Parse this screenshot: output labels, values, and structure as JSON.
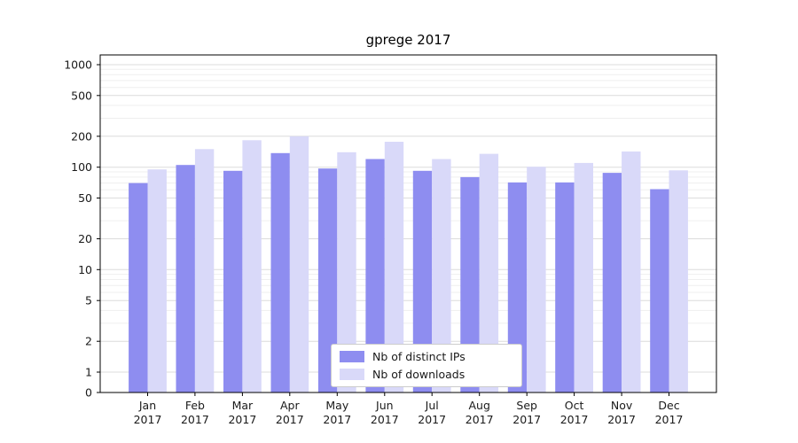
{
  "chart_data": {
    "type": "bar",
    "title": "gprege 2017",
    "scale": "symlog",
    "grid": true,
    "legend_position": "lower center",
    "months": [
      "Jan",
      "Feb",
      "Mar",
      "Apr",
      "May",
      "Jun",
      "Jul",
      "Aug",
      "Sep",
      "Oct",
      "Nov",
      "Dec"
    ],
    "year_label": "2017",
    "categories": [
      "Jan 2017",
      "Feb 2017",
      "Mar 2017",
      "Apr 2017",
      "May 2017",
      "Jun 2017",
      "Jul 2017",
      "Aug 2017",
      "Sep 2017",
      "Oct 2017",
      "Nov 2017",
      "Dec 2017"
    ],
    "series": [
      {
        "name": "Nb of distinct IPs",
        "color": "#8e8df0",
        "values": [
          70,
          105,
          92,
          137,
          97,
          120,
          92,
          80,
          71,
          71,
          88,
          61
        ]
      },
      {
        "name": "Nb of downloads",
        "color": "#d9d9f9",
        "values": [
          95,
          150,
          183,
          200,
          140,
          177,
          120,
          135,
          101,
          110,
          142,
          93
        ]
      }
    ],
    "yticks": [
      0,
      1,
      2,
      5,
      10,
      20,
      50,
      100,
      200,
      500,
      1000
    ],
    "ylim": [
      0,
      1250
    ],
    "xlabel": "",
    "ylabel": ""
  },
  "colors": {
    "major_grid": "#dcdcdc",
    "minor_grid": "#efefef",
    "spine": "#000000"
  }
}
